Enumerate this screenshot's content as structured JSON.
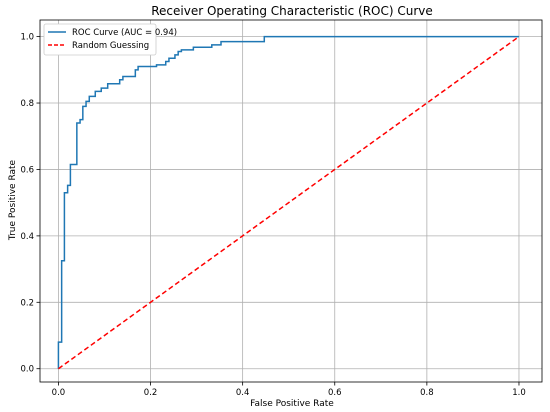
{
  "chart_data": {
    "type": "line",
    "title": "Receiver Operating Characteristic (ROC) Curve",
    "xlabel": "False Positive Rate",
    "ylabel": "True Positive Rate",
    "xlim": [
      -0.04,
      1.05
    ],
    "ylim": [
      -0.04,
      1.05
    ],
    "xticks": [
      "0.0",
      "0.2",
      "0.4",
      "0.6",
      "0.8",
      "1.0"
    ],
    "yticks": [
      "0.0",
      "0.2",
      "0.4",
      "0.6",
      "0.8",
      "1.0"
    ],
    "grid": true,
    "legend_position": "top-left",
    "series": [
      {
        "name": "ROC Curve (AUC = 0.94)",
        "color": "#1f77b4",
        "style": "solid",
        "x": [
          0.0,
          0.0,
          0.007,
          0.007,
          0.013,
          0.013,
          0.02,
          0.02,
          0.026,
          0.026,
          0.04,
          0.04,
          0.047,
          0.047,
          0.053,
          0.053,
          0.06,
          0.06,
          0.067,
          0.067,
          0.08,
          0.08,
          0.093,
          0.093,
          0.107,
          0.107,
          0.133,
          0.133,
          0.14,
          0.14,
          0.167,
          0.167,
          0.173,
          0.173,
          0.213,
          0.213,
          0.233,
          0.233,
          0.24,
          0.24,
          0.253,
          0.253,
          0.26,
          0.26,
          0.267,
          0.267,
          0.293,
          0.293,
          0.333,
          0.333,
          0.353,
          0.353,
          0.447,
          0.447,
          1.0
        ],
        "y": [
          0.0,
          0.08,
          0.08,
          0.325,
          0.325,
          0.53,
          0.53,
          0.552,
          0.552,
          0.615,
          0.615,
          0.74,
          0.74,
          0.75,
          0.75,
          0.79,
          0.79,
          0.805,
          0.805,
          0.82,
          0.82,
          0.835,
          0.835,
          0.845,
          0.845,
          0.858,
          0.858,
          0.87,
          0.87,
          0.88,
          0.88,
          0.9,
          0.9,
          0.91,
          0.91,
          0.915,
          0.915,
          0.925,
          0.925,
          0.935,
          0.935,
          0.945,
          0.945,
          0.955,
          0.955,
          0.96,
          0.96,
          0.968,
          0.968,
          0.975,
          0.975,
          0.985,
          0.985,
          1.0,
          1.0
        ]
      },
      {
        "name": "Random Guessing",
        "color": "#ff0000",
        "style": "dashed",
        "x": [
          0.0,
          1.0
        ],
        "y": [
          0.0,
          1.0
        ]
      }
    ]
  }
}
